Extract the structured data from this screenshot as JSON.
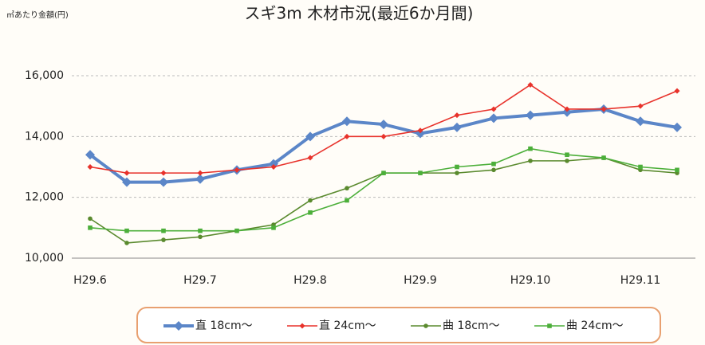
{
  "chart_data": {
    "type": "line",
    "title": "スギ3m 木材市況(最近6か月間)",
    "y_label": "㎥あたり金額(円)",
    "categories": [
      "H29.6",
      null,
      null,
      "H29.7",
      null,
      null,
      "H29.8",
      null,
      null,
      "H29.9",
      null,
      null,
      "H29.10",
      null,
      null,
      "H29.11",
      null
    ],
    "ylim": [
      10000,
      16000
    ],
    "yticks": [
      {
        "value": 10000,
        "label": "10,000"
      },
      {
        "value": 12000,
        "label": "12,000"
      },
      {
        "value": 14000,
        "label": "14,000"
      },
      {
        "value": 16000,
        "label": "16,000"
      }
    ],
    "grid": true,
    "legend": "bottom",
    "series": [
      {
        "name": "直 18cm～",
        "color": "#5b86c8",
        "marker": "diamond",
        "width": 4,
        "values": [
          13400,
          12500,
          12500,
          12600,
          12900,
          13100,
          14000,
          14500,
          14400,
          14100,
          14300,
          14600,
          14700,
          14800,
          14900,
          14500,
          14300
        ]
      },
      {
        "name": "直 24cm～",
        "color": "#e8322b",
        "marker": "diamond",
        "width": 1.6,
        "values": [
          13000,
          12800,
          12800,
          12800,
          12900,
          13000,
          13300,
          14000,
          14000,
          14200,
          14700,
          14900,
          15700,
          14900,
          14900,
          15000,
          15500
        ]
      },
      {
        "name": "曲 18cm～",
        "color": "#5a8a2e",
        "marker": "circle",
        "width": 1.6,
        "values": [
          11300,
          10500,
          10600,
          10700,
          10900,
          11100,
          11900,
          12300,
          12800,
          12800,
          12800,
          12900,
          13200,
          13200,
          13300,
          12900,
          12800
        ]
      },
      {
        "name": "曲 24cm～",
        "color": "#4caf3a",
        "marker": "square",
        "width": 1.6,
        "values": [
          11000,
          10900,
          10900,
          10900,
          10900,
          11000,
          11500,
          11900,
          12800,
          12800,
          13000,
          13100,
          13600,
          13400,
          13300,
          13000,
          12900
        ]
      }
    ]
  }
}
